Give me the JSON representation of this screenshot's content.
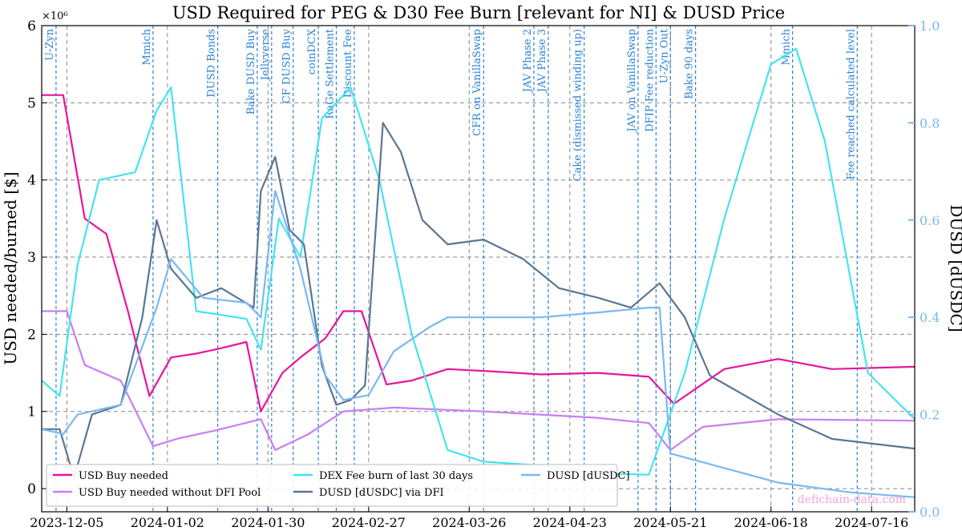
{
  "chart_data": {
    "type": "line",
    "title": "USD Required for PEG & D30 Fee Burn [relevant for NI] & DUSD Price",
    "ylabel": "USD needed/burned [$]",
    "ylabel_right": "DUSD [dUSDC]",
    "y_exponent_label": "×10⁶",
    "ylim": [
      -0.3,
      6.0
    ],
    "yticks": [
      0,
      1,
      2,
      3,
      4,
      5,
      6
    ],
    "ylim_right": [
      0.0,
      1.0
    ],
    "yticks_right": [
      0.0,
      0.2,
      0.4,
      0.6,
      0.8,
      1.0
    ],
    "xlim": [
      "2023-11-28",
      "2024-07-28"
    ],
    "xticks": [
      "2023-12-05",
      "2024-01-02",
      "2024-01-30",
      "2024-02-27",
      "2024-03-26",
      "2024-04-23",
      "2024-05-21",
      "2024-06-18",
      "2024-07-16"
    ],
    "grid": true,
    "legend_position": "bottom-left",
    "watermark": "defichain-data.com",
    "events": [
      {
        "date": "2023-12-02",
        "label": "U-Zyn"
      },
      {
        "date": "2023-12-29",
        "label": "Mmich"
      },
      {
        "date": "2024-01-16",
        "label": "DUSD Bonds"
      },
      {
        "date": "2024-01-27",
        "label": "Bake DUSD Buy"
      },
      {
        "date": "2024-01-31",
        "label": "Jellyverse"
      },
      {
        "date": "2024-02-06",
        "label": "CF DUSD Buy"
      },
      {
        "date": "2024-02-13",
        "label": "coinDCX"
      },
      {
        "date": "2024-02-18",
        "label": "RaGe Settlement"
      },
      {
        "date": "2024-02-23",
        "label": "Discount Fee"
      },
      {
        "date": "2024-03-30",
        "label": "CFR on VanillaSwap"
      },
      {
        "date": "2024-04-13",
        "label": "JAV Phase 2"
      },
      {
        "date": "2024-04-17",
        "label": "JAV Phase 3"
      },
      {
        "date": "2024-04-27",
        "label": "Cake (dismissed winding up)"
      },
      {
        "date": "2024-05-12",
        "label": "JAV on VanillaSwap"
      },
      {
        "date": "2024-05-17",
        "label": "DFIP Fee reduction"
      },
      {
        "date": "2024-05-21",
        "label": "U-Zyn Out"
      },
      {
        "date": "2024-05-28",
        "label": "Bake 90 days"
      },
      {
        "date": "2024-06-24",
        "label": "Mmich"
      },
      {
        "date": "2024-07-12",
        "label": "Fee reached calculated level"
      }
    ],
    "series": [
      {
        "name": "USD Buy needed",
        "color": "#e6159b",
        "axis": "left",
        "x": [
          "2023-11-28",
          "2023-12-04",
          "2023-12-10",
          "2023-12-16",
          "2023-12-22",
          "2023-12-28",
          "2024-01-03",
          "2024-01-10",
          "2024-01-17",
          "2024-01-24",
          "2024-01-28",
          "2024-02-03",
          "2024-02-08",
          "2024-02-15",
          "2024-02-20",
          "2024-02-25",
          "2024-03-03",
          "2024-03-10",
          "2024-03-20",
          "2024-04-01",
          "2024-04-15",
          "2024-05-01",
          "2024-05-15",
          "2024-05-22",
          "2024-06-05",
          "2024-06-20",
          "2024-07-05",
          "2024-07-28"
        ],
        "values": [
          5.1,
          5.1,
          3.5,
          3.3,
          2.3,
          1.2,
          1.7,
          1.75,
          1.82,
          1.9,
          1.0,
          1.5,
          1.7,
          1.95,
          2.3,
          2.3,
          1.35,
          1.4,
          1.55,
          1.52,
          1.48,
          1.5,
          1.45,
          1.1,
          1.55,
          1.68,
          1.55,
          1.58
        ]
      },
      {
        "name": "USD Buy needed without DFI Pool",
        "color": "#c77ef5",
        "axis": "left",
        "x": [
          "2023-11-28",
          "2023-12-05",
          "2023-12-10",
          "2023-12-20",
          "2023-12-29",
          "2024-01-05",
          "2024-01-15",
          "2024-01-28",
          "2024-02-01",
          "2024-02-10",
          "2024-02-20",
          "2024-03-05",
          "2024-03-30",
          "2024-04-30",
          "2024-05-15",
          "2024-05-21",
          "2024-05-30",
          "2024-06-20",
          "2024-07-28"
        ],
        "values": [
          2.3,
          2.3,
          1.6,
          1.4,
          0.55,
          0.65,
          0.75,
          0.9,
          0.5,
          0.7,
          1.0,
          1.05,
          1.0,
          0.92,
          0.85,
          0.5,
          0.8,
          0.9,
          0.88
        ]
      },
      {
        "name": "DEX Fee burn of last 30 days",
        "color": "#45e3f0",
        "axis": "left",
        "x": [
          "2023-11-28",
          "2023-12-03",
          "2023-12-08",
          "2023-12-14",
          "2023-12-24",
          "2023-12-30",
          "2024-01-03",
          "2024-01-10",
          "2024-01-24",
          "2024-01-28",
          "2024-02-02",
          "2024-02-08",
          "2024-02-14",
          "2024-02-22",
          "2024-03-01",
          "2024-03-10",
          "2024-03-20",
          "2024-03-30",
          "2024-04-15",
          "2024-05-01",
          "2024-05-15",
          "2024-05-25",
          "2024-06-05",
          "2024-06-18",
          "2024-06-25",
          "2024-07-03",
          "2024-07-15",
          "2024-07-28"
        ],
        "values": [
          1.4,
          1.2,
          2.9,
          4.0,
          4.1,
          4.9,
          5.2,
          2.3,
          2.2,
          1.8,
          3.5,
          3.0,
          4.8,
          5.2,
          4.0,
          2.0,
          0.5,
          0.35,
          0.3,
          0.2,
          0.18,
          1.5,
          3.5,
          5.5,
          5.7,
          4.5,
          1.5,
          0.9
        ]
      },
      {
        "name": "DUSD [dUSDC] via DFI",
        "color": "#5a7792",
        "axis": "right",
        "x": [
          "2023-11-28",
          "2023-12-03",
          "2023-12-07",
          "2023-12-12",
          "2023-12-20",
          "2023-12-26",
          "2023-12-30",
          "2024-01-03",
          "2024-01-10",
          "2024-01-17",
          "2024-01-26",
          "2024-01-28",
          "2024-02-01",
          "2024-02-05",
          "2024-02-09",
          "2024-02-14",
          "2024-02-18",
          "2024-02-22",
          "2024-02-26",
          "2024-03-02",
          "2024-03-07",
          "2024-03-13",
          "2024-03-20",
          "2024-03-30",
          "2024-04-10",
          "2024-04-20",
          "2024-05-01",
          "2024-05-10",
          "2024-05-18",
          "2024-05-25",
          "2024-06-01",
          "2024-06-20",
          "2024-07-05",
          "2024-07-28"
        ],
        "values": [
          0.17,
          0.17,
          0.07,
          0.2,
          0.22,
          0.4,
          0.6,
          0.5,
          0.44,
          0.46,
          0.42,
          0.66,
          0.73,
          0.58,
          0.55,
          0.3,
          0.22,
          0.23,
          0.26,
          0.8,
          0.74,
          0.6,
          0.55,
          0.56,
          0.52,
          0.46,
          0.44,
          0.42,
          0.47,
          0.4,
          0.28,
          0.2,
          0.15,
          0.13
        ]
      },
      {
        "name": "DUSD [dUSDC]",
        "color": "#7ab8f2",
        "axis": "right",
        "x": [
          "2023-11-28",
          "2023-12-04",
          "2023-12-08",
          "2023-12-20",
          "2023-12-30",
          "2024-01-03",
          "2024-01-12",
          "2024-01-24",
          "2024-01-28",
          "2024-02-01",
          "2024-02-08",
          "2024-02-15",
          "2024-02-20",
          "2024-02-27",
          "2024-03-05",
          "2024-03-15",
          "2024-03-20",
          "2024-04-15",
          "2024-05-01",
          "2024-05-15",
          "2024-05-18",
          "2024-05-21",
          "2024-06-05",
          "2024-06-20",
          "2024-07-10",
          "2024-07-28"
        ],
        "values": [
          0.17,
          0.16,
          0.2,
          0.22,
          0.42,
          0.52,
          0.44,
          0.43,
          0.4,
          0.66,
          0.5,
          0.28,
          0.23,
          0.24,
          0.33,
          0.38,
          0.4,
          0.4,
          0.41,
          0.42,
          0.42,
          0.12,
          0.09,
          0.06,
          0.04,
          0.03
        ]
      }
    ]
  }
}
